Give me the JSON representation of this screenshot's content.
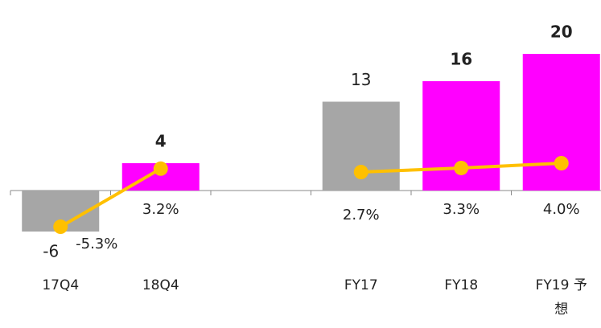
{
  "chart_data": {
    "type": "bar",
    "categories": [
      "17Q4",
      "18Q4",
      null,
      "FY17",
      "FY18",
      "FY19 予想"
    ],
    "values": [
      -6,
      4,
      null,
      13,
      16,
      20
    ],
    "colors": [
      "#a6a6a6",
      "#ff00ff",
      null,
      "#a6a6a6",
      "#ff00ff",
      "#ff00ff"
    ],
    "bold": [
      false,
      true,
      null,
      false,
      true,
      true
    ],
    "ylim": [
      -15,
      25
    ],
    "series": [
      {
        "type": "line",
        "axis": "y2",
        "color": "#ffc000",
        "values": [
          -5.3,
          3.2,
          null,
          2.7,
          3.3,
          4.0
        ],
        "value_labels": [
          "-5.3%",
          "3.2%",
          null,
          "2.7%",
          "3.3%",
          "4.0%"
        ]
      }
    ],
    "y2lim": [
      -15,
      25
    ]
  }
}
